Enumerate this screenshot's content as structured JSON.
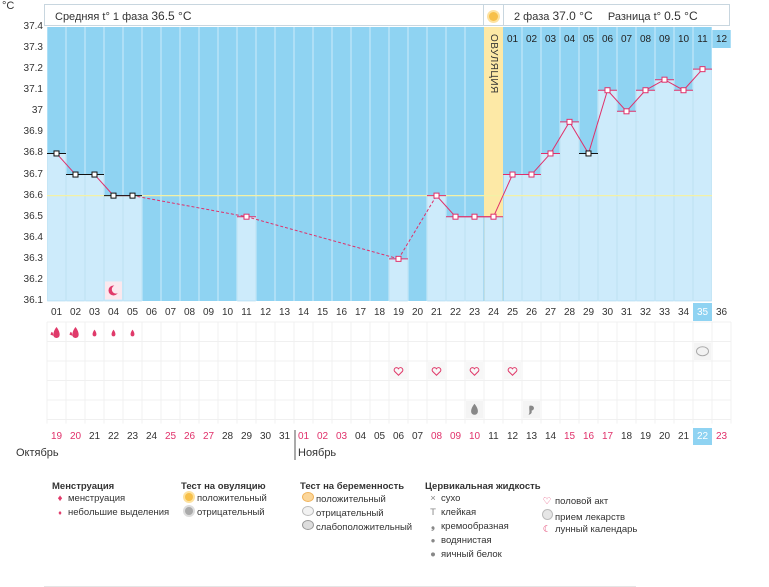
{
  "header": {
    "phase1_label": "Средняя t° 1 фаза",
    "phase1_value": "36.5 °C",
    "phase2_label": "2 фаза",
    "phase2_value": "37.0 °C",
    "diff_label": "Разница t°",
    "diff_value": "0.5 °C"
  },
  "unit_label": "°C",
  "ovulation_label": "ОВУЛЯЦИЯ",
  "chart_data": {
    "type": "line",
    "ylabel": "°C",
    "ylim": [
      36.1,
      37.4
    ],
    "yticks": [
      "37.4",
      "37.3",
      "37.2",
      "37.1",
      "37",
      "36.9",
      "36.8",
      "36.7",
      "36.6",
      "36.5",
      "36.4",
      "36.3",
      "36.2",
      "36.1"
    ],
    "coverline": 36.6,
    "ovulation_day": 24,
    "cycle_days": [
      "01",
      "02",
      "03",
      "04",
      "05",
      "06",
      "07",
      "08",
      "09",
      "10",
      "11",
      "12",
      "13",
      "14",
      "15",
      "16",
      "17",
      "18",
      "19",
      "20",
      "21",
      "22",
      "23",
      "24",
      "25",
      "26",
      "27",
      "28",
      "29",
      "30",
      "31",
      "32",
      "33",
      "34",
      "35",
      "36"
    ],
    "phase2_days": [
      "01",
      "02",
      "03",
      "04",
      "05",
      "06",
      "07",
      "08",
      "09",
      "10",
      "11",
      "12"
    ],
    "temperatures": [
      36.8,
      36.7,
      36.7,
      36.6,
      36.6,
      null,
      null,
      null,
      null,
      null,
      36.5,
      null,
      null,
      null,
      null,
      null,
      null,
      null,
      36.3,
      null,
      36.6,
      36.5,
      36.5,
      36.5,
      36.7,
      36.7,
      36.8,
      36.95,
      36.8,
      37.1,
      37.0,
      37.1,
      37.15,
      37.1,
      37.2,
      null
    ],
    "excluded_days": [
      1,
      2,
      3,
      4,
      5,
      29
    ],
    "dates": [
      "19",
      "20",
      "21",
      "22",
      "23",
      "24",
      "25",
      "26",
      "27",
      "28",
      "29",
      "30",
      "31",
      "01",
      "02",
      "03",
      "04",
      "05",
      "06",
      "07",
      "08",
      "09",
      "10",
      "11",
      "12",
      "13",
      "14",
      "15",
      "16",
      "17",
      "18",
      "19",
      "20",
      "21",
      "22",
      "23"
    ],
    "red_dates": [
      1,
      2,
      7,
      8,
      9,
      14,
      15,
      16,
      21,
      22,
      23,
      28,
      29,
      30,
      36
    ],
    "months": [
      "Октябрь",
      "Ноябрь"
    ],
    "today_index": 35
  },
  "markers": {
    "menstruation": [
      {
        "day": 1,
        "type": "heavy"
      },
      {
        "day": 2,
        "type": "heavy"
      },
      {
        "day": 3,
        "type": "light"
      },
      {
        "day": 4,
        "type": "light"
      },
      {
        "day": 5,
        "type": "light"
      }
    ],
    "intercourse_days": [
      19,
      21,
      23,
      25
    ],
    "pregnancy_test_days": [
      35
    ],
    "mucus": [
      {
        "day": 23,
        "type": "wet"
      },
      {
        "day": 26,
        "type": "creamy"
      }
    ],
    "moon_day": 4
  },
  "legend": {
    "menstruation_title": "Менструация",
    "menstruation_heavy": "менструация",
    "menstruation_light": "небольшие выделения",
    "ovtest_title": "Тест на овуляцию",
    "ovtest_pos": "положительный",
    "ovtest_neg": "отрицательный",
    "pregtest_title": "Тест на беременность",
    "pregtest_pos": "положительный",
    "pregtest_neg": "отрицательный",
    "pregtest_weak": "слабоположительный",
    "mucus_title": "Цервикальная жидкость",
    "mucus_dry": "сухо",
    "mucus_sticky": "клейкая",
    "mucus_creamy": "кремообразная",
    "mucus_watery": "водянистая",
    "mucus_eggwhite": "яичный белок",
    "other_sex": "половой акт",
    "other_meds": "прием лекарств",
    "other_moon": "лунный календарь"
  },
  "colors": {
    "sky": "#8fd3f2",
    "bar": "#cdebfb",
    "bar_edge": "#a8d8f0",
    "line": "#e0306a",
    "ovulation": "#fde9a6",
    "coverline": "#f3f1a6",
    "pink": "#e03a6a"
  }
}
